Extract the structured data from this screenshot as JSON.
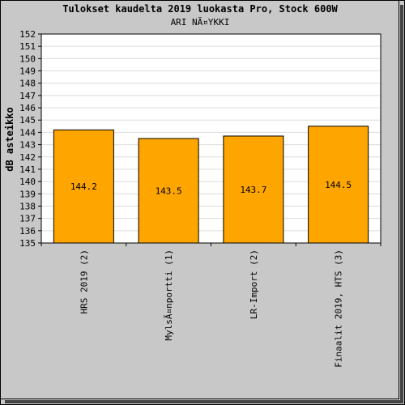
{
  "chart_data": {
    "type": "bar",
    "title": "Tulokset kaudelta 2019 luokasta Pro, Stock 600W",
    "subtitle": "ARI NÃ¤YKKI",
    "ylabel": "dB asteikko",
    "xlabel": "",
    "categories": [
      "HRS 2019 (2)",
      "MylsÃ¤nportti (1)",
      "LR-Import (2)",
      "Finaalit 2019, HTS (3)"
    ],
    "values": [
      144.2,
      143.5,
      143.7,
      144.5
    ],
    "data_labels": [
      "144.2",
      "143.5",
      "143.7",
      "144.5"
    ],
    "ylim": [
      135,
      152
    ],
    "y_ticks": [
      "135",
      "136",
      "137",
      "138",
      "139",
      "140",
      "141",
      "142",
      "143",
      "144",
      "145",
      "146",
      "147",
      "148",
      "149",
      "150",
      "151",
      "152"
    ],
    "grid": true,
    "legend": "none",
    "bar_color": "#ffa500"
  }
}
